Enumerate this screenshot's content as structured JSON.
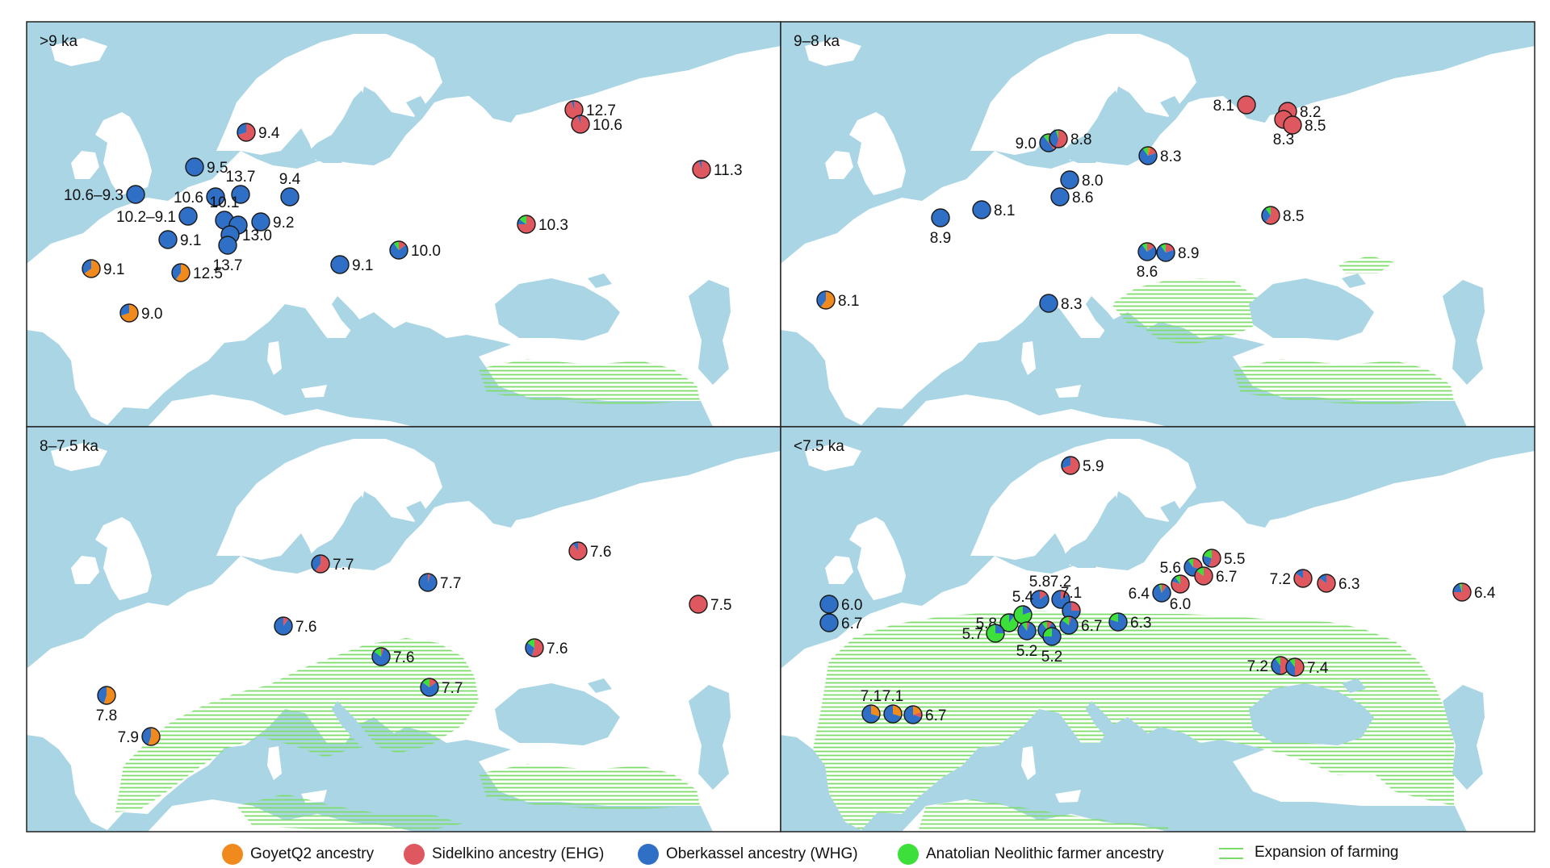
{
  "figure": {
    "colors": {
      "sea": "#a9d5e5",
      "land": "#ffffff",
      "farming": "#7ddc6a",
      "border": "#222222",
      "goyet": "#f08a1c",
      "sidelkino": "#e0585f",
      "oberkassel": "#2f6fc5",
      "anatolian": "#3de03a"
    },
    "panels": [
      {
        "title": ">9 ka",
        "farming": "minimal",
        "sites": [
          {
            "label": "9.4",
            "ancestry": {
              "goyet": 0,
              "sidelkino": 0.7,
              "oberkassel": 0.3,
              "anatolian": 0
            }
          },
          {
            "label": "12.7",
            "ancestry": {
              "goyet": 0,
              "sidelkino": 0.95,
              "oberkassel": 0.05,
              "anatolian": 0
            }
          },
          {
            "label": "10.6",
            "ancestry": {
              "goyet": 0,
              "sidelkino": 0.95,
              "oberkassel": 0.05,
              "anatolian": 0
            }
          },
          {
            "label": "11.3",
            "ancestry": {
              "goyet": 0,
              "sidelkino": 0.95,
              "oberkassel": 0.05,
              "anatolian": 0
            }
          },
          {
            "label": "9.5",
            "ancestry": {
              "goyet": 0,
              "sidelkino": 0,
              "oberkassel": 1,
              "anatolian": 0
            }
          },
          {
            "label": "10.6–9.3",
            "ancestry": {
              "goyet": 0,
              "sidelkino": 0,
              "oberkassel": 1,
              "anatolian": 0
            }
          },
          {
            "label": "13.7",
            "ancestry": {
              "goyet": 0,
              "sidelkino": 0,
              "oberkassel": 1,
              "anatolian": 0
            }
          },
          {
            "label": "10.6",
            "ancestry": {
              "goyet": 0,
              "sidelkino": 0,
              "oberkassel": 1,
              "anatolian": 0
            }
          },
          {
            "label": "9.4",
            "ancestry": {
              "goyet": 0,
              "sidelkino": 0,
              "oberkassel": 1,
              "anatolian": 0
            }
          },
          {
            "label": "10.2–9.1",
            "ancestry": {
              "goyet": 0,
              "sidelkino": 0,
              "oberkassel": 1,
              "anatolian": 0
            }
          },
          {
            "label": "10.1",
            "ancestry": {
              "goyet": 0,
              "sidelkino": 0,
              "oberkassel": 1,
              "anatolian": 0
            }
          },
          {
            "label": "9.2",
            "ancestry": {
              "goyet": 0,
              "sidelkino": 0,
              "oberkassel": 1,
              "anatolian": 0
            }
          },
          {
            "label": "",
            "ancestry": {
              "goyet": 0,
              "sidelkino": 0,
              "oberkassel": 1,
              "anatolian": 0
            }
          },
          {
            "label": "13.0",
            "ancestry": {
              "goyet": 0,
              "sidelkino": 0,
              "oberkassel": 1,
              "anatolian": 0
            }
          },
          {
            "label": "13.7",
            "ancestry": {
              "goyet": 0,
              "sidelkino": 0,
              "oberkassel": 1,
              "anatolian": 0
            }
          },
          {
            "label": "9.1",
            "ancestry": {
              "goyet": 0,
              "sidelkino": 0,
              "oberkassel": 1,
              "anatolian": 0
            }
          },
          {
            "label": "10.3",
            "ancestry": {
              "goyet": 0,
              "sidelkino": 0.75,
              "oberkassel": 0.1,
              "anatolian": 0.15
            }
          },
          {
            "label": "9.1",
            "ancestry": {
              "goyet": 0.65,
              "sidelkino": 0,
              "oberkassel": 0.35,
              "anatolian": 0
            }
          },
          {
            "label": "12.5",
            "ancestry": {
              "goyet": 0.6,
              "sidelkino": 0,
              "oberkassel": 0.4,
              "anatolian": 0
            }
          },
          {
            "label": "9.1",
            "ancestry": {
              "goyet": 0,
              "sidelkino": 0,
              "oberkassel": 1,
              "anatolian": 0
            }
          },
          {
            "label": "10.0",
            "ancestry": {
              "goyet": 0,
              "sidelkino": 0.15,
              "oberkassel": 0.75,
              "anatolian": 0.1
            }
          },
          {
            "label": "9.0",
            "ancestry": {
              "goyet": 0.7,
              "sidelkino": 0,
              "oberkassel": 0.3,
              "anatolian": 0
            }
          }
        ]
      },
      {
        "title": "9–8 ka",
        "farming": "balkans",
        "sites": [
          {
            "label": "8.1",
            "ancestry": {
              "goyet": 0,
              "sidelkino": 1,
              "oberkassel": 0,
              "anatolian": 0
            }
          },
          {
            "label": "8.2",
            "ancestry": {
              "goyet": 0,
              "sidelkino": 1,
              "oberkassel": 0,
              "anatolian": 0
            }
          },
          {
            "label": "8.3",
            "ancestry": {
              "goyet": 0,
              "sidelkino": 1,
              "oberkassel": 0,
              "anatolian": 0
            }
          },
          {
            "label": "8.5",
            "ancestry": {
              "goyet": 0,
              "sidelkino": 1,
              "oberkassel": 0,
              "anatolian": 0
            }
          },
          {
            "label": "9.0",
            "ancestry": {
              "goyet": 0,
              "sidelkino": 0.4,
              "oberkassel": 0.5,
              "anatolian": 0.1
            }
          },
          {
            "label": "8.8",
            "ancestry": {
              "goyet": 0,
              "sidelkino": 0.55,
              "oberkassel": 0.4,
              "anatolian": 0.05
            }
          },
          {
            "label": "8.3",
            "ancestry": {
              "goyet": 0.05,
              "sidelkino": 0.15,
              "oberkassel": 0.7,
              "anatolian": 0.1
            }
          },
          {
            "label": "8.0",
            "ancestry": {
              "goyet": 0,
              "sidelkino": 0,
              "oberkassel": 1,
              "anatolian": 0
            }
          },
          {
            "label": "8.6",
            "ancestry": {
              "goyet": 0,
              "sidelkino": 0,
              "oberkassel": 1,
              "anatolian": 0
            }
          },
          {
            "label": "8.1",
            "ancestry": {
              "goyet": 0,
              "sidelkino": 0,
              "oberkassel": 1,
              "anatolian": 0
            }
          },
          {
            "label": "8.9",
            "ancestry": {
              "goyet": 0,
              "sidelkino": 0,
              "oberkassel": 1,
              "anatolian": 0
            }
          },
          {
            "label": "8.5",
            "ancestry": {
              "goyet": 0,
              "sidelkino": 0.6,
              "oberkassel": 0.3,
              "anatolian": 0.1
            }
          },
          {
            "label": "8.6",
            "ancestry": {
              "goyet": 0,
              "sidelkino": 0.15,
              "oberkassel": 0.75,
              "anatolian": 0.1
            }
          },
          {
            "label": "8.9",
            "ancestry": {
              "goyet": 0,
              "sidelkino": 0.2,
              "oberkassel": 0.7,
              "anatolian": 0.1
            }
          },
          {
            "label": "8.1",
            "ancestry": {
              "goyet": 0.6,
              "sidelkino": 0,
              "oberkassel": 0.4,
              "anatolian": 0
            }
          },
          {
            "label": "8.3",
            "ancestry": {
              "goyet": 0,
              "sidelkino": 0,
              "oberkassel": 1,
              "anatolian": 0
            }
          }
        ]
      },
      {
        "title": "8–7.5 ka",
        "farming": "central",
        "sites": [
          {
            "label": "7.6",
            "ancestry": {
              "goyet": 0,
              "sidelkino": 0.9,
              "oberkassel": 0.1,
              "anatolian": 0
            }
          },
          {
            "label": "7.7",
            "ancestry": {
              "goyet": 0,
              "sidelkino": 0.6,
              "oberkassel": 0.4,
              "anatolian": 0
            }
          },
          {
            "label": "7.7",
            "ancestry": {
              "goyet": 0,
              "sidelkino": 0.05,
              "oberkassel": 0.95,
              "anatolian": 0
            }
          },
          {
            "label": "7.5",
            "ancestry": {
              "goyet": 0,
              "sidelkino": 1,
              "oberkassel": 0,
              "anatolian": 0
            }
          },
          {
            "label": "7.6",
            "ancestry": {
              "goyet": 0,
              "sidelkino": 0.1,
              "oberkassel": 0.9,
              "anatolian": 0
            }
          },
          {
            "label": "7.6",
            "ancestry": {
              "goyet": 0,
              "sidelkino": 0.05,
              "oberkassel": 0.8,
              "anatolian": 0.15
            }
          },
          {
            "label": "7.6",
            "ancestry": {
              "goyet": 0,
              "sidelkino": 0.55,
              "oberkassel": 0.3,
              "anatolian": 0.15
            }
          },
          {
            "label": "7.7",
            "ancestry": {
              "goyet": 0,
              "sidelkino": 0.15,
              "oberkassel": 0.7,
              "anatolian": 0.15
            }
          },
          {
            "label": "7.8",
            "ancestry": {
              "goyet": 0.55,
              "sidelkino": 0,
              "oberkassel": 0.45,
              "anatolian": 0
            }
          },
          {
            "label": "7.9",
            "ancestry": {
              "goyet": 0.55,
              "sidelkino": 0,
              "oberkassel": 0.45,
              "anatolian": 0
            }
          }
        ]
      },
      {
        "title": "<7.5 ka",
        "farming": "wide",
        "sites": [
          {
            "label": "5.9",
            "ancestry": {
              "goyet": 0,
              "sidelkino": 0.7,
              "oberkassel": 0.3,
              "anatolian": 0
            }
          },
          {
            "label": "5.6",
            "ancestry": {
              "goyet": 0,
              "sidelkino": 0.3,
              "oberkassel": 0.6,
              "anatolian": 0.1
            }
          },
          {
            "label": "5.5",
            "ancestry": {
              "goyet": 0,
              "sidelkino": 0.55,
              "oberkassel": 0.25,
              "anatolian": 0.2
            }
          },
          {
            "label": "6.7",
            "ancestry": {
              "goyet": 0,
              "sidelkino": 0.85,
              "oberkassel": 0,
              "anatolian": 0.15
            }
          },
          {
            "label": "6.4",
            "ancestry": {
              "goyet": 0,
              "sidelkino": 0.1,
              "oberkassel": 0.85,
              "anatolian": 0.05
            }
          },
          {
            "label": "6.0",
            "ancestry": {
              "goyet": 0,
              "sidelkino": 0.8,
              "oberkassel": 0.1,
              "anatolian": 0.1
            }
          },
          {
            "label": "7.2",
            "ancestry": {
              "goyet": 0,
              "sidelkino": 0.85,
              "oberkassel": 0.15,
              "anatolian": 0
            }
          },
          {
            "label": "6.3",
            "ancestry": {
              "goyet": 0,
              "sidelkino": 0.85,
              "oberkassel": 0.15,
              "anatolian": 0
            }
          },
          {
            "label": "6.4",
            "ancestry": {
              "goyet": 0,
              "sidelkino": 0.75,
              "oberkassel": 0.2,
              "anatolian": 0.05
            }
          },
          {
            "label": "6.0",
            "ancestry": {
              "goyet": 0,
              "sidelkino": 0,
              "oberkassel": 1,
              "anatolian": 0
            }
          },
          {
            "label": "6.7",
            "ancestry": {
              "goyet": 0,
              "sidelkino": 0,
              "oberkassel": 1,
              "anatolian": 0
            }
          },
          {
            "label": "5.8",
            "ancestry": {
              "goyet": 0,
              "sidelkino": 0.15,
              "oberkassel": 0.85,
              "anatolian": 0
            }
          },
          {
            "label": "7.2",
            "ancestry": {
              "goyet": 0,
              "sidelkino": 0.15,
              "oberkassel": 0.85,
              "anatolian": 0
            }
          },
          {
            "label": "7.1",
            "ancestry": {
              "goyet": 0,
              "sidelkino": 0.25,
              "oberkassel": 0.75,
              "anatolian": 0
            }
          },
          {
            "label": "5.8",
            "ancestry": {
              "goyet": 0,
              "sidelkino": 0,
              "oberkassel": 0.1,
              "anatolian": 0.9
            }
          },
          {
            "label": "5.4",
            "ancestry": {
              "goyet": 0,
              "sidelkino": 0,
              "oberkassel": 0.2,
              "anatolian": 0.8
            }
          },
          {
            "label": "5.7",
            "ancestry": {
              "goyet": 0,
              "sidelkino": 0,
              "oberkassel": 0.25,
              "anatolian": 0.75
            }
          },
          {
            "label": "5.2",
            "ancestry": {
              "goyet": 0,
              "sidelkino": 0.05,
              "oberkassel": 0.85,
              "anatolian": 0.1
            }
          },
          {
            "label": "",
            "ancestry": {
              "goyet": 0,
              "sidelkino": 0.1,
              "oberkassel": 0.8,
              "anatolian": 0.1
            }
          },
          {
            "label": "5.2",
            "ancestry": {
              "goyet": 0,
              "sidelkino": 0,
              "oberkassel": 0.75,
              "anatolian": 0.25
            }
          },
          {
            "label": "6.7",
            "ancestry": {
              "goyet": 0,
              "sidelkino": 0.05,
              "oberkassel": 0.8,
              "anatolian": 0.15
            }
          },
          {
            "label": "6.3",
            "ancestry": {
              "goyet": 0,
              "sidelkino": 0,
              "oberkassel": 0.8,
              "anatolian": 0.2
            }
          },
          {
            "label": "7.2",
            "ancestry": {
              "goyet": 0,
              "sidelkino": 0.5,
              "oberkassel": 0.4,
              "anatolian": 0.1
            }
          },
          {
            "label": "7.4",
            "ancestry": {
              "goyet": 0,
              "sidelkino": 0.5,
              "oberkassel": 0.4,
              "anatolian": 0.1
            }
          },
          {
            "label": "7.1",
            "ancestry": {
              "goyet": 0.3,
              "sidelkino": 0,
              "oberkassel": 0.7,
              "anatolian": 0
            }
          },
          {
            "label": "7.1",
            "ancestry": {
              "goyet": 0.3,
              "sidelkino": 0,
              "oberkassel": 0.7,
              "anatolian": 0
            }
          },
          {
            "label": "6.7",
            "ancestry": {
              "goyet": 0.2,
              "sidelkino": 0.1,
              "oberkassel": 0.7,
              "anatolian": 0
            }
          }
        ]
      }
    ]
  },
  "legend": {
    "items": [
      {
        "label": "GoyetQ2 ancestry",
        "color_key": "goyet"
      },
      {
        "label": "Sidelkino ancestry (EHG)",
        "color_key": "sidelkino"
      },
      {
        "label": "Oberkassel ancestry (WHG)",
        "color_key": "oberkassel"
      },
      {
        "label": "Anatolian Neolithic farmer ancestry",
        "color_key": "anatolian"
      }
    ],
    "farming_label": "Expansion of farming"
  }
}
